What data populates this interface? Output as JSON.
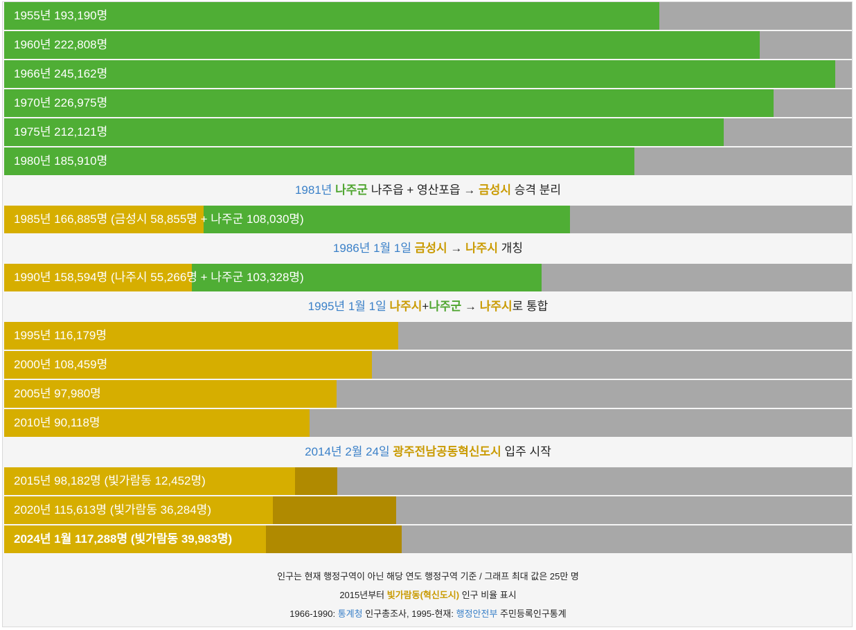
{
  "colors": {
    "green": "#4fae35",
    "gold": "#d6ae00",
    "dark_gold": "#b08a00",
    "gray": "#a8a8a8",
    "blue_text": "#3a80c8",
    "green_text": "#4fa530",
    "gold_text": "#c99a00"
  },
  "chart_data": {
    "type": "bar",
    "orientation": "horizontal",
    "xlim": [
      0,
      250000
    ],
    "unit": "명",
    "bars": [
      {
        "label": "1955년 193,190명",
        "total": 193190,
        "segments": [
          {
            "value": 193190,
            "color": "green"
          }
        ]
      },
      {
        "label": "1960년 222,808명",
        "total": 222808,
        "segments": [
          {
            "value": 222808,
            "color": "green"
          }
        ]
      },
      {
        "label": "1966년 245,162명",
        "total": 245162,
        "segments": [
          {
            "value": 245162,
            "color": "green"
          }
        ]
      },
      {
        "label": "1970년 226,975명",
        "total": 226975,
        "segments": [
          {
            "value": 226975,
            "color": "green"
          }
        ]
      },
      {
        "label": "1975년 212,121명",
        "total": 212121,
        "segments": [
          {
            "value": 212121,
            "color": "green"
          }
        ]
      },
      {
        "label": "1980년 185,910명",
        "total": 185910,
        "segments": [
          {
            "value": 185910,
            "color": "green"
          }
        ]
      },
      {
        "label": "1985년 166,885명 (금성시 58,855명 + 나주군 108,030명)",
        "total": 166885,
        "segments": [
          {
            "value": 58855,
            "color": "gold"
          },
          {
            "value": 108030,
            "color": "green"
          }
        ]
      },
      {
        "label": "1990년 158,594명 (나주시 55,266명 + 나주군 103,328명)",
        "total": 158594,
        "segments": [
          {
            "value": 55266,
            "color": "gold"
          },
          {
            "value": 103328,
            "color": "green"
          }
        ]
      },
      {
        "label": "1995년 116,179명",
        "total": 116179,
        "segments": [
          {
            "value": 116179,
            "color": "gold"
          }
        ]
      },
      {
        "label": "2000년 108,459명",
        "total": 108459,
        "segments": [
          {
            "value": 108459,
            "color": "gold"
          }
        ]
      },
      {
        "label": "2005년 97,980명",
        "total": 97980,
        "segments": [
          {
            "value": 97980,
            "color": "gold"
          }
        ]
      },
      {
        "label": "2010년 90,118명",
        "total": 90118,
        "segments": [
          {
            "value": 90118,
            "color": "gold"
          }
        ]
      },
      {
        "label": "2015년 98,182명 (빛가람동 12,452명)",
        "total": 98182,
        "segments": [
          {
            "value": 85730,
            "color": "gold"
          },
          {
            "value": 12452,
            "color": "dark_gold"
          }
        ]
      },
      {
        "label": "2020년 115,613명 (빛가람동 36,284명)",
        "total": 115613,
        "segments": [
          {
            "value": 79329,
            "color": "gold"
          },
          {
            "value": 36284,
            "color": "dark_gold"
          }
        ]
      },
      {
        "label": "2024년 1월 117,288명 (빛가람동 39,983명)",
        "total": 117288,
        "bold": true,
        "segments": [
          {
            "value": 77305,
            "color": "gold"
          },
          {
            "value": 39983,
            "color": "dark_gold"
          }
        ]
      }
    ],
    "events": [
      {
        "after_bar": 5,
        "parts": [
          {
            "text": "1981년 ",
            "color": "blue_text"
          },
          {
            "text": "나주군",
            "color": "green_text",
            "bold": true
          },
          {
            "text": " 나주읍 + 영산포읍 → ",
            "color": "plain"
          },
          {
            "text": "금성시",
            "color": "gold_text",
            "bold": true
          },
          {
            "text": " 승격 분리",
            "color": "plain"
          }
        ]
      },
      {
        "after_bar": 6,
        "parts": [
          {
            "text": "1986년 1월 1일 ",
            "color": "blue_text"
          },
          {
            "text": "금성시",
            "color": "gold_text",
            "bold": true
          },
          {
            "text": " → ",
            "color": "plain"
          },
          {
            "text": "나주시",
            "color": "gold_text",
            "bold": true
          },
          {
            "text": " 개칭",
            "color": "plain"
          }
        ]
      },
      {
        "after_bar": 7,
        "parts": [
          {
            "text": "1995년 1월 1일 ",
            "color": "blue_text"
          },
          {
            "text": "나주시",
            "color": "gold_text",
            "bold": true
          },
          {
            "text": "+",
            "color": "plain"
          },
          {
            "text": "나주군",
            "color": "green_text",
            "bold": true
          },
          {
            "text": " → ",
            "color": "plain"
          },
          {
            "text": "나주시",
            "color": "gold_text",
            "bold": true
          },
          {
            "text": "로 통합",
            "color": "plain"
          }
        ]
      },
      {
        "after_bar": 11,
        "parts": [
          {
            "text": "2014년 2월 24일 ",
            "color": "blue_text"
          },
          {
            "text": "광주전남공동혁신도시",
            "color": "gold_text",
            "bold": true
          },
          {
            "text": " 입주 시작",
            "color": "plain"
          }
        ]
      }
    ]
  },
  "footer": {
    "lines": [
      [
        {
          "text": "인구는 현재 행정구역이 아닌 해당 연도 행정구역 기준 / 그래프 최대 값은 25만 명",
          "color": "plain"
        }
      ],
      [
        {
          "text": "2015년부터 ",
          "color": "plain"
        },
        {
          "text": "빛가람동(혁신도시)",
          "color": "gold_text",
          "bold": true
        },
        {
          "text": " 인구 비율 표시",
          "color": "plain"
        }
      ],
      [
        {
          "text": "1966-1990: ",
          "color": "plain"
        },
        {
          "text": "통계청",
          "color": "blue_text"
        },
        {
          "text": " 인구총조사, 1995-현재: ",
          "color": "plain"
        },
        {
          "text": "행정안전부",
          "color": "blue_text"
        },
        {
          "text": " 주민등록인구통계",
          "color": "plain"
        }
      ]
    ]
  }
}
